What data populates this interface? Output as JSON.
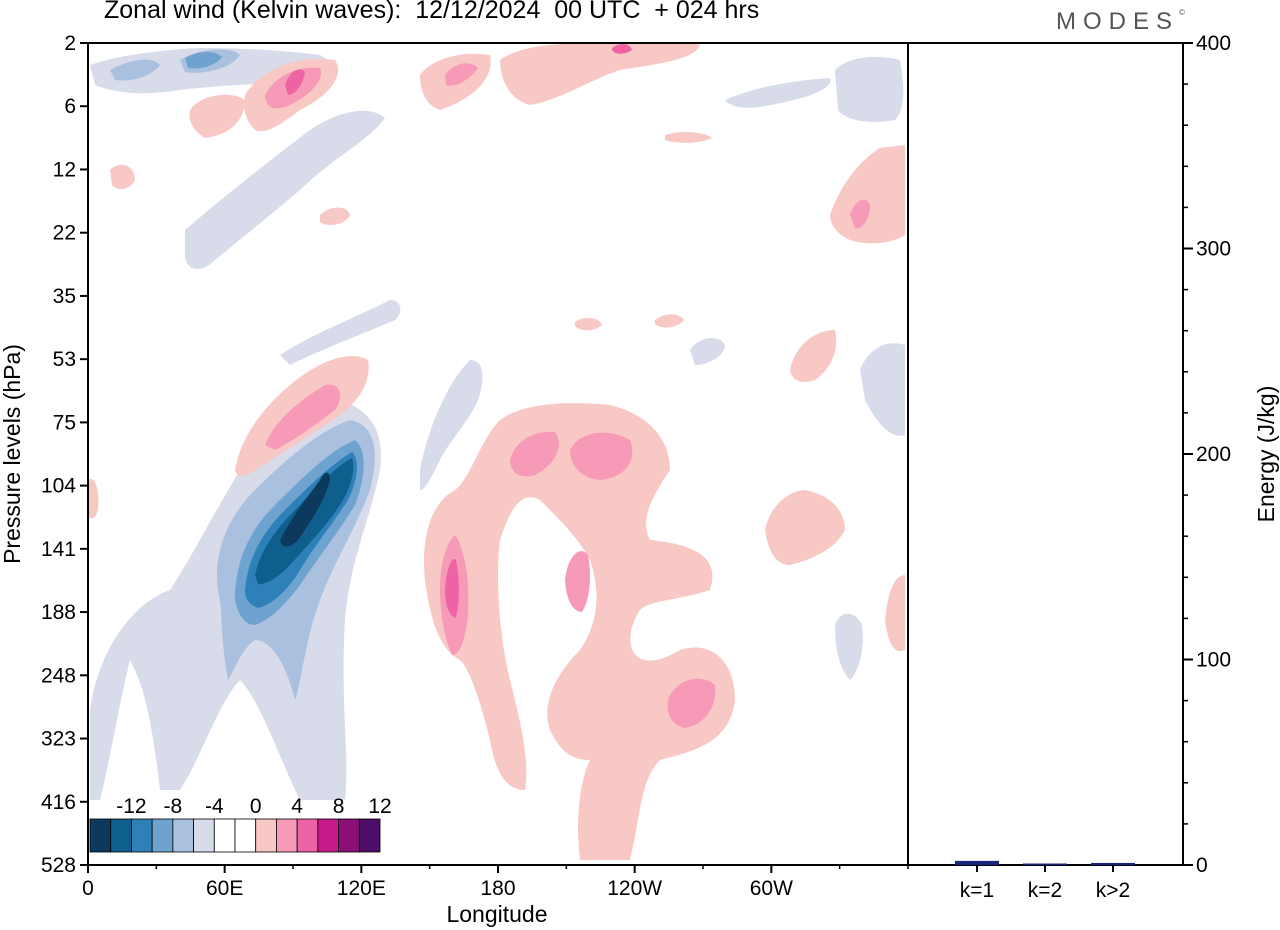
{
  "header": {
    "title": "Zonal wind (Kelvin waves):  12/12/2024  00 UTC  + 024 hrs",
    "brand": "MODES",
    "brand_mark": "©"
  },
  "chart_data": [
    {
      "type": "heatmap",
      "title": "Zonal wind (Kelvin waves):  12/12/2024  00 UTC  + 024 hrs",
      "xlabel": "Longitude",
      "ylabel": "Pressure levels (hPa)",
      "x_ticks": [
        "0",
        "60E",
        "120E",
        "180",
        "120W",
        "60W"
      ],
      "x_tick_values": [
        0,
        60,
        120,
        180,
        240,
        300
      ],
      "xlim": [
        0,
        360
      ],
      "y_ticks": [
        "2",
        "6",
        "12",
        "22",
        "35",
        "53",
        "75",
        "104",
        "141",
        "188",
        "248",
        "323",
        "416",
        "528"
      ],
      "y_scale": "pressure-levels, increasing downward",
      "colorbar": {
        "labels": [
          "-12",
          "-8",
          "-4",
          "0",
          "4",
          "8",
          "12"
        ],
        "colors": [
          "#0d3a5c",
          "#0f5f8e",
          "#2e80b8",
          "#6fa3cf",
          "#a9c1de",
          "#d7dbea",
          "#ffffff",
          "#ffffff",
          "#f8c8c5",
          "#f79ab8",
          "#ee63a4",
          "#c71a8a",
          "#8c0f78",
          "#4d0d68"
        ]
      },
      "regions": [
        {
          "sign": "negative",
          "level": -20,
          "lon": [
            60,
            125
          ],
          "p": [
            "75",
            "141"
          ],
          "description": "strong easterly core"
        },
        {
          "sign": "positive",
          "level": 8,
          "lon": [
            148,
            165
          ],
          "p": [
            "104",
            "248"
          ]
        },
        {
          "sign": "positive",
          "level": 6,
          "lon": [
            175,
            245
          ],
          "p": [
            "75",
            "104"
          ]
        },
        {
          "sign": "positive",
          "level": 6,
          "lon": [
            255,
            280
          ],
          "p": [
            "248",
            "323"
          ]
        },
        {
          "sign": "positive",
          "level": 4,
          "lon": [
            70,
            112
          ],
          "p": [
            "53",
            "104"
          ]
        },
        {
          "sign": "positive",
          "level": 8,
          "lon": [
            75,
            105
          ],
          "p": [
            "2",
            "12"
          ]
        },
        {
          "sign": "negative",
          "level": -8,
          "lon": [
            30,
            75
          ],
          "p": [
            "2",
            "6"
          ]
        }
      ]
    },
    {
      "type": "bar",
      "categories": [
        "k=1",
        "k=2",
        "k>2"
      ],
      "values": [
        2,
        0.5,
        1
      ],
      "ylabel": "Energy (J/kg)",
      "ylim": [
        0,
        400
      ],
      "y_ticks": [
        "0",
        "100",
        "200",
        "300",
        "400"
      ],
      "y_tick_values": [
        0,
        100,
        200,
        300,
        400
      ],
      "bar_color": "#1a237e"
    }
  ]
}
